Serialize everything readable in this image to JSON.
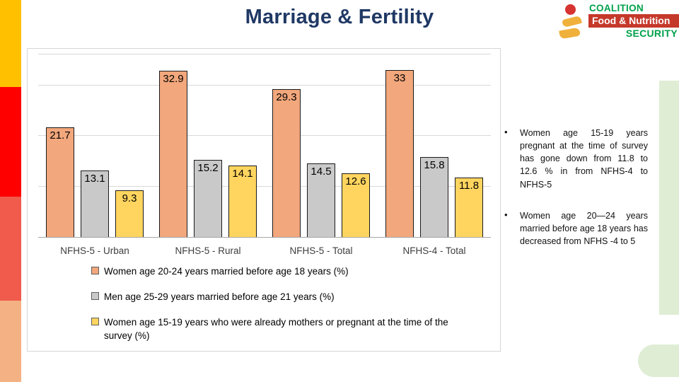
{
  "slide": {
    "title": "Marriage & Fertility",
    "title_color": "#1F3864"
  },
  "logo": {
    "line1": "COALITION",
    "line2": "Food & Nutrition",
    "line3": "SECURITY",
    "green": "#00A14B",
    "bar_red": "#C5392B",
    "head_red": "#D63331",
    "swoosh_yellow": "#F0B03C"
  },
  "sidebar": {
    "bands": [
      {
        "name": "gold",
        "color": "#FFC000"
      },
      {
        "name": "red",
        "color": "#FF0000"
      },
      {
        "name": "coral",
        "color": "#F05B4C"
      },
      {
        "name": "peach",
        "color": "#F4B183"
      }
    ]
  },
  "accent": {
    "light_green": "#DFEDD5"
  },
  "chart_data": {
    "type": "bar",
    "title": "",
    "xlabel": "",
    "ylabel": "",
    "categories": [
      "NFHS-5 - Urban",
      "NFHS-5 - Rural",
      "NFHS-5 - Total",
      "NFHS-4 - Total"
    ],
    "series": [
      {
        "name": "Women age 20-24 years married before age 18 years (%)",
        "color": "#F2A77C",
        "values": [
          21.7,
          32.9,
          29.3,
          33
        ]
      },
      {
        "name": "Men age 25-29 years married before age 21 years (%)",
        "color": "#C9C9C9",
        "values": [
          13.1,
          15.2,
          14.5,
          15.8
        ]
      },
      {
        "name": "Women age 15-19 years who were already mothers or pregnant at the time of the survey (%)",
        "color": "#FFD55F",
        "values": [
          9.3,
          14.1,
          12.6,
          11.8
        ]
      }
    ],
    "ylim": [
      0,
      36.4
    ],
    "gridlines": [
      10,
      20,
      30
    ],
    "grid": true,
    "legend_position": "bottom",
    "data_labels": "inside-top"
  },
  "bullets": [
    "Women age 15-19 years pregnant at the time of survey has gone down from 11.8 to 12.6 % in from NFHS-4 to NFHS-5",
    "Women age 20—24 years married before age 18 years has decreased from NFHS -4 to 5"
  ]
}
